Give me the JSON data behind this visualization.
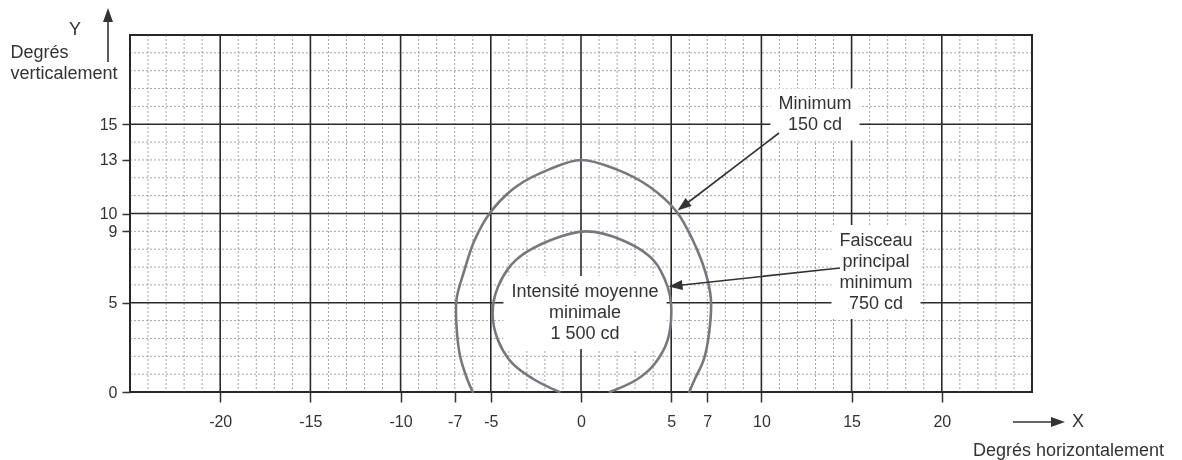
{
  "chart_data": {
    "type": "line",
    "xlabel": "Degrés horizontalement",
    "ylabel": "Degrés\nverticalement",
    "xlim": [
      -25,
      25
    ],
    "ylim": [
      0,
      20
    ],
    "xticks": [
      -20,
      -15,
      -10,
      -7,
      -5,
      0,
      5,
      7,
      10,
      15,
      20
    ],
    "yticks": [
      0,
      5,
      9,
      10,
      13,
      15
    ],
    "grid": true,
    "series": [
      {
        "color": "#77787e",
        "x": [
          -6.0,
          -6.3,
          -6.7,
          -6.9,
          -6.9,
          -6.5,
          -5.9,
          -5.0,
          -3.6,
          -1.7,
          0,
          1.9,
          3.8,
          5.3,
          6.2,
          6.9,
          7.2,
          7.1,
          6.8,
          6.3,
          6.0
        ],
        "values": [
          0,
          0.7,
          2.0,
          3.7,
          5.2,
          6.7,
          8.5,
          10.1,
          11.5,
          12.5,
          13,
          12.5,
          11.5,
          10.1,
          8.5,
          6.7,
          5.2,
          3.3,
          1.8,
          0.7,
          0
        ]
      },
      {
        "color": "#77787e",
        "x": [
          -1.2,
          -2.6,
          -3.8,
          -4.6,
          -4.9,
          -4.6,
          -3.6,
          -1.7,
          0.3,
          2.3,
          4.0,
          4.8,
          5.0,
          4.8,
          4.1,
          3.1,
          1.6
        ],
        "values": [
          0,
          0.7,
          1.6,
          2.9,
          4.4,
          5.9,
          7.4,
          8.5,
          9,
          8.5,
          7.4,
          5.9,
          4.8,
          2.9,
          1.6,
          0.7,
          0
        ]
      }
    ],
    "annotations": [
      "Y",
      "X",
      "Intensité moyenne\nminimale\n1 500 cd",
      "Minimum\n150 cd",
      "Faisceau\nprincipal\nminimum\n750 cd"
    ]
  }
}
